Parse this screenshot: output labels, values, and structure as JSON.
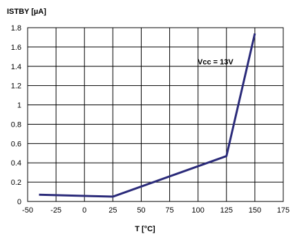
{
  "chart_data": {
    "type": "line",
    "ylabel": "ISTBY [µA]",
    "xlabel": "T [°C]",
    "xlim": [
      -50,
      175
    ],
    "ylim": [
      0,
      1.8
    ],
    "x_ticks": [
      -50,
      -25,
      0,
      25,
      50,
      75,
      100,
      125,
      150,
      175
    ],
    "y_ticks": [
      0,
      0.2,
      0.4,
      0.6,
      0.8,
      1,
      1.2,
      1.4,
      1.6,
      1.8
    ],
    "x_tick_labels": [
      "-50",
      "-25",
      "0",
      "25",
      "50",
      "75",
      "100",
      "125",
      "150",
      "175"
    ],
    "y_tick_labels": [
      "0",
      "0.2",
      "0.4",
      "0.6",
      "0.8",
      "1",
      "1.2",
      "1.4",
      "1.6",
      "1.8"
    ],
    "grid": true,
    "series": [
      {
        "annotation": "Vcc = 13V",
        "color": "#2b2b7a",
        "x": [
          -40,
          25,
          125,
          150
        ],
        "y": [
          0.07,
          0.05,
          0.47,
          1.74
        ]
      }
    ]
  }
}
